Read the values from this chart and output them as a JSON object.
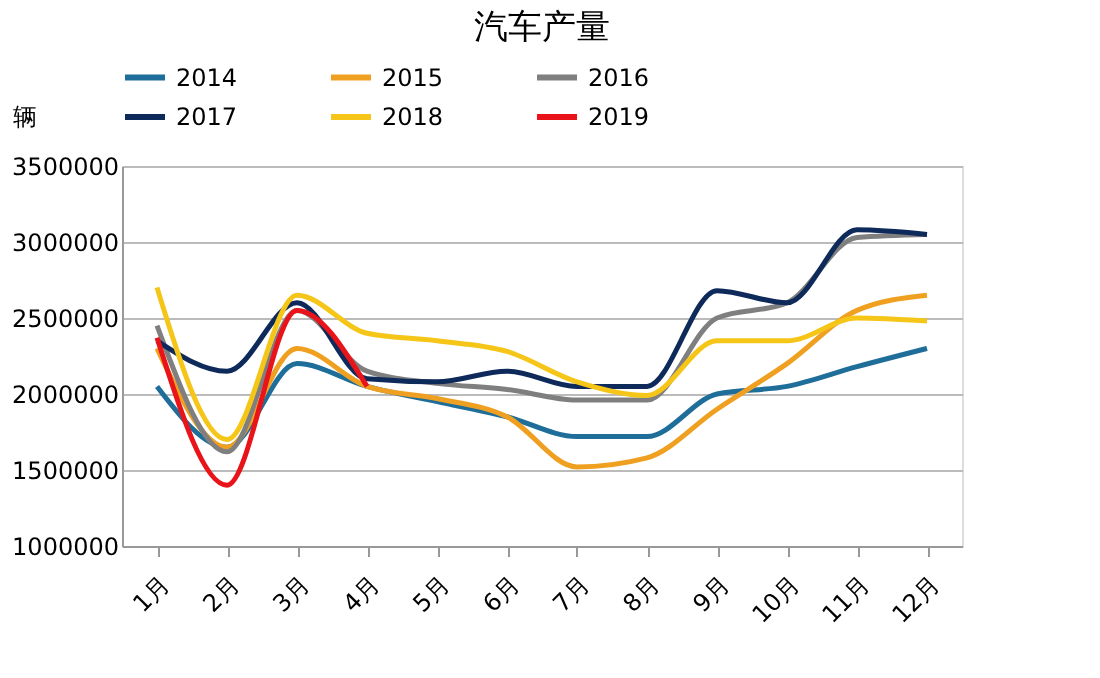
{
  "chart_data": {
    "type": "line",
    "title": "汽车产量",
    "ylabel": "辆",
    "categories": [
      "1月",
      "2月",
      "3月",
      "4月",
      "5月",
      "6月",
      "7月",
      "8月",
      "9月",
      "10月",
      "11月",
      "12月"
    ],
    "series": [
      {
        "name": "2014",
        "color": "#1f6e9a",
        "values": [
          2050000,
          1650000,
          2200000,
          2050000,
          1950000,
          1850000,
          1720000,
          1720000,
          2000000,
          2050000,
          2180000,
          2300000
        ]
      },
      {
        "name": "2015",
        "color": "#f0a020",
        "values": [
          2300000,
          1650000,
          2300000,
          2050000,
          1970000,
          1850000,
          1520000,
          1580000,
          1900000,
          2200000,
          2550000,
          2650000
        ]
      },
      {
        "name": "2016",
        "color": "#7f7f7f",
        "values": [
          2450000,
          1620000,
          2550000,
          2150000,
          2070000,
          2030000,
          1960000,
          1960000,
          2500000,
          2600000,
          3030000,
          3050000
        ]
      },
      {
        "name": "2017",
        "color": "#0e2a5a",
        "values": [
          2350000,
          2150000,
          2600000,
          2100000,
          2080000,
          2150000,
          2050000,
          2050000,
          2680000,
          2600000,
          3080000,
          3050000
        ]
      },
      {
        "name": "2018",
        "color": "#f5c518",
        "values": [
          2700000,
          1700000,
          2650000,
          2400000,
          2350000,
          2280000,
          2080000,
          1990000,
          2350000,
          2350000,
          2500000,
          2480000
        ]
      },
      {
        "name": "2019",
        "color": "#e8141a",
        "values": [
          2370000,
          1400000,
          2550000,
          2050000,
          null,
          null,
          null,
          null,
          null,
          null,
          null,
          null
        ]
      }
    ],
    "ylim": [
      1000000,
      3500000
    ],
    "yticks": [
      1000000,
      1500000,
      2000000,
      2500000,
      3000000,
      3500000
    ],
    "grid": "y",
    "legend": "top",
    "marker": "none",
    "line_style": "solid"
  }
}
